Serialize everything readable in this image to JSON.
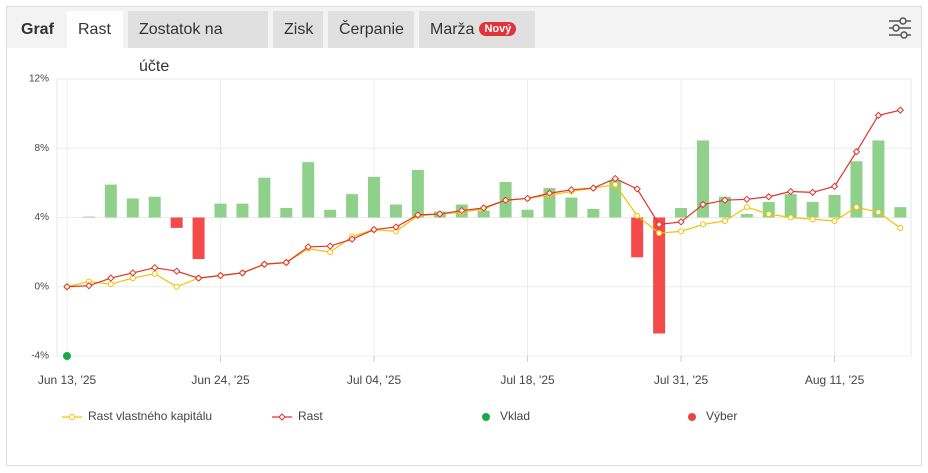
{
  "header": {
    "title": "Graf",
    "tabs": [
      "Rast",
      "Zostatok na účte",
      "Zisk",
      "Čerpanie",
      "Marža"
    ],
    "badge": "Nový"
  },
  "chart_data": {
    "type": "line",
    "categories": [
      "Jun 13, '25",
      null,
      null,
      null,
      null,
      null,
      null,
      "Jun 24, '25",
      null,
      null,
      null,
      null,
      null,
      null,
      "Jul 04, '25",
      null,
      null,
      null,
      null,
      null,
      null,
      "Jul 18, '25",
      null,
      null,
      null,
      null,
      null,
      null,
      "Jul 31, '25",
      null,
      null,
      null,
      null,
      null,
      null,
      "Aug 11, '25",
      null,
      null,
      null
    ],
    "ylim": [
      -4,
      12
    ],
    "yticks": [
      {
        "value": -4,
        "label": "-4%"
      },
      {
        "value": 0,
        "label": "0%"
      },
      {
        "value": 4,
        "label": "4%"
      },
      {
        "value": 8,
        "label": "8%"
      },
      {
        "value": 12,
        "label": "12%"
      }
    ],
    "y2lim": [
      -8,
      8
    ],
    "grid": true,
    "bars": {
      "axis": "y2",
      "color": "#8fd18b",
      "negative_color": "#f44a4a",
      "values": [
        null,
        0.05,
        1.9,
        1.1,
        1.2,
        -0.6,
        -2.4,
        0.8,
        0.8,
        2.3,
        0.55,
        3.2,
        0.45,
        1.35,
        2.35,
        0.75,
        2.75,
        0.35,
        0.75,
        0.4,
        2.05,
        0.45,
        1.7,
        1.15,
        0.5,
        2.15,
        -2.3,
        -6.7,
        0.55,
        4.45,
        1.2,
        0.2,
        0.9,
        1.35,
        0.9,
        1.3,
        3.25,
        4.45,
        0.6
      ]
    },
    "series": [
      {
        "name": "Rast vlastného kapitálu",
        "color": "#f2c200",
        "marker": "circle",
        "values": [
          0,
          0.3,
          0.15,
          0.5,
          0.75,
          0,
          0.5,
          0.65,
          0.8,
          1.3,
          1.4,
          2.2,
          2.0,
          2.9,
          3.3,
          3.2,
          4.1,
          4.2,
          4.3,
          4.5,
          5.0,
          5.1,
          5.3,
          5.5,
          5.7,
          5.9,
          4.1,
          3.1,
          3.2,
          3.6,
          3.8,
          4.6,
          4.2,
          4.0,
          3.9,
          3.8,
          4.6,
          4.3,
          3.4
        ]
      },
      {
        "name": "Rast",
        "color": "#e0332e",
        "marker": "diamond",
        "values": [
          0,
          0.06,
          0.5,
          0.8,
          1.1,
          0.9,
          0.5,
          0.65,
          0.8,
          1.3,
          1.4,
          2.3,
          2.35,
          2.75,
          3.3,
          3.45,
          4.15,
          4.2,
          4.4,
          4.55,
          5.0,
          5.1,
          5.4,
          5.6,
          5.7,
          6.25,
          5.65,
          3.6,
          3.75,
          4.75,
          5.0,
          5.05,
          5.2,
          5.5,
          5.45,
          5.8,
          7.8,
          9.9,
          10.2
        ]
      },
      {
        "name": "Vklad",
        "color": "#1aa84a",
        "marker": "dot",
        "values": [
          -4,
          null,
          null,
          null,
          null,
          null,
          null,
          null,
          null,
          null,
          null,
          null,
          null,
          null,
          null,
          null,
          null,
          null,
          null,
          null,
          null,
          null,
          null,
          null,
          null,
          null,
          null,
          null,
          null,
          null,
          null,
          null,
          null,
          null,
          null,
          null,
          null,
          null,
          null
        ]
      },
      {
        "name": "Výber",
        "color": "#e84545",
        "marker": "dot",
        "values": [
          null,
          null,
          null,
          null,
          null,
          null,
          null,
          null,
          null,
          null,
          null,
          null,
          null,
          null,
          null,
          null,
          null,
          null,
          null,
          null,
          null,
          null,
          null,
          null,
          null,
          null,
          null,
          null,
          null,
          null,
          null,
          null,
          null,
          null,
          null,
          null,
          null,
          null,
          null
        ]
      }
    ]
  }
}
